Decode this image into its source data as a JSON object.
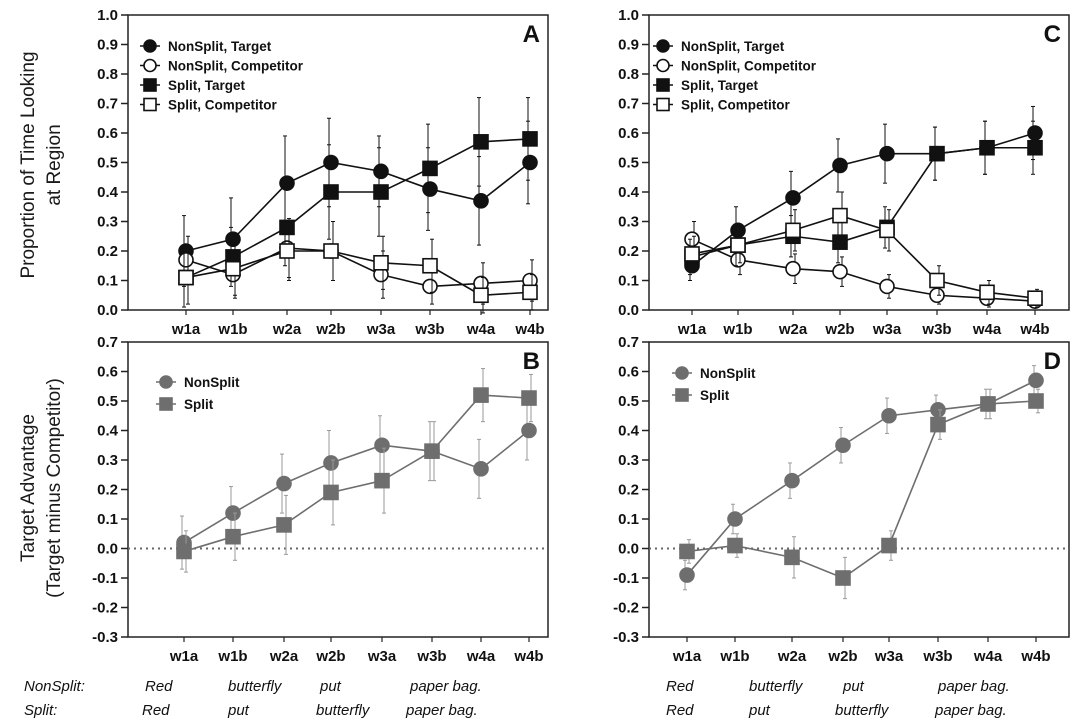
{
  "figure": {
    "ylabel_top": [
      "Proportion of Time Looking",
      "at Region"
    ],
    "ylabel_bottom": [
      "Target Advantage",
      "(Target minus Competitor)"
    ]
  },
  "colors": {
    "black": "#111111",
    "gray": "#6e6e6e",
    "errorbar_gray": "#9a9a9a"
  },
  "chart_data": [
    {
      "panel": "A",
      "type": "line",
      "categories": [
        "w1a",
        "w1b",
        "w2a",
        "w2b",
        "w3a",
        "w3b",
        "w4a",
        "w4b"
      ],
      "ylim": [
        0,
        1.0
      ],
      "yticks": [
        "0.0",
        "0.1",
        "0.2",
        "0.3",
        "0.4",
        "0.5",
        "0.6",
        "0.7",
        "0.8",
        "0.9",
        "1.0"
      ],
      "legend_position": "top-left",
      "series": [
        {
          "name": "NonSplit, Target",
          "marker": "circle",
          "fill": "filled",
          "values": [
            0.2,
            0.24,
            0.43,
            0.5,
            0.47,
            0.41,
            0.37,
            0.5
          ],
          "err": [
            0.12,
            0.14,
            0.16,
            0.15,
            0.12,
            0.14,
            0.15,
            0.14
          ]
        },
        {
          "name": "NonSplit, Competitor",
          "marker": "circle",
          "fill": "open",
          "values": [
            0.17,
            0.12,
            0.21,
            0.2,
            0.12,
            0.08,
            0.09,
            0.1
          ],
          "err": [
            0.08,
            0.08,
            0.1,
            0.1,
            0.08,
            0.06,
            0.07,
            0.07
          ]
        },
        {
          "name": "Split, Target",
          "marker": "square",
          "fill": "filled",
          "values": [
            0.11,
            0.18,
            0.28,
            0.4,
            0.4,
            0.48,
            0.57,
            0.58
          ],
          "err": [
            0.1,
            0.1,
            0.13,
            0.16,
            0.15,
            0.15,
            0.15,
            0.14
          ]
        },
        {
          "name": "Split, Competitor",
          "marker": "square",
          "fill": "open",
          "values": [
            0.11,
            0.14,
            0.2,
            0.2,
            0.16,
            0.15,
            0.05,
            0.06
          ],
          "err": [
            0.09,
            0.09,
            0.1,
            0.1,
            0.09,
            0.09,
            0.06,
            0.06
          ]
        }
      ]
    },
    {
      "panel": "C",
      "type": "line",
      "categories": [
        "w1a",
        "w1b",
        "w2a",
        "w2b",
        "w3a",
        "w3b",
        "w4a",
        "w4b"
      ],
      "ylim": [
        0,
        1.0
      ],
      "yticks": [
        "0.0",
        "0.1",
        "0.2",
        "0.3",
        "0.4",
        "0.5",
        "0.6",
        "0.7",
        "0.8",
        "0.9",
        "1.0"
      ],
      "legend_position": "top-left",
      "series": [
        {
          "name": "NonSplit, Target",
          "marker": "circle",
          "fill": "filled",
          "values": [
            0.15,
            0.27,
            0.38,
            0.49,
            0.53,
            0.53,
            0.55,
            0.6
          ],
          "err": [
            0.05,
            0.08,
            0.09,
            0.09,
            0.1,
            0.09,
            0.09,
            0.09
          ]
        },
        {
          "name": "NonSplit, Competitor",
          "marker": "circle",
          "fill": "open",
          "values": [
            0.24,
            0.17,
            0.14,
            0.13,
            0.08,
            0.05,
            0.04,
            0.03
          ],
          "err": [
            0.06,
            0.05,
            0.05,
            0.05,
            0.04,
            0.03,
            0.03,
            0.02
          ]
        },
        {
          "name": "Split, Target",
          "marker": "square",
          "fill": "filled",
          "values": [
            0.18,
            0.22,
            0.25,
            0.23,
            0.28,
            0.53,
            0.55,
            0.55
          ],
          "err": [
            0.06,
            0.07,
            0.07,
            0.07,
            0.07,
            0.09,
            0.09,
            0.09
          ]
        },
        {
          "name": "Split, Competitor",
          "marker": "square",
          "fill": "open",
          "values": [
            0.19,
            0.22,
            0.27,
            0.32,
            0.27,
            0.1,
            0.06,
            0.04
          ],
          "err": [
            0.06,
            0.06,
            0.07,
            0.08,
            0.07,
            0.05,
            0.04,
            0.03
          ]
        }
      ]
    },
    {
      "panel": "B",
      "type": "line",
      "categories": [
        "w1a",
        "w1b",
        "w2a",
        "w2b",
        "w3a",
        "w3b",
        "w4a",
        "w4b"
      ],
      "ylim": [
        -0.3,
        0.7
      ],
      "yticks": [
        "-0.3",
        "-0.2",
        "-0.1",
        "0.0",
        "0.1",
        "0.2",
        "0.3",
        "0.4",
        "0.5",
        "0.6",
        "0.7"
      ],
      "reference_line": 0,
      "legend_position": "top-left",
      "series": [
        {
          "name": "NonSplit",
          "marker": "circle",
          "values": [
            0.02,
            0.12,
            0.22,
            0.29,
            0.35,
            0.33,
            0.27,
            0.4
          ],
          "err": [
            0.09,
            0.09,
            0.1,
            0.11,
            0.1,
            0.1,
            0.1,
            0.1
          ]
        },
        {
          "name": "Split",
          "marker": "square",
          "values": [
            -0.01,
            0.04,
            0.08,
            0.19,
            0.23,
            0.33,
            0.52,
            0.51
          ],
          "err": [
            0.07,
            0.08,
            0.1,
            0.11,
            0.11,
            0.1,
            0.09,
            0.08
          ]
        }
      ]
    },
    {
      "panel": "D",
      "type": "line",
      "categories": [
        "w1a",
        "w1b",
        "w2a",
        "w2b",
        "w3a",
        "w3b",
        "w4a",
        "w4b"
      ],
      "ylim": [
        -0.3,
        0.7
      ],
      "yticks": [
        "-0.3",
        "-0.2",
        "-0.1",
        "0.0",
        "0.1",
        "0.2",
        "0.3",
        "0.4",
        "0.5",
        "0.6",
        "0.7"
      ],
      "reference_line": 0,
      "legend_position": "top-left",
      "series": [
        {
          "name": "NonSplit",
          "marker": "circle",
          "values": [
            -0.09,
            0.1,
            0.23,
            0.35,
            0.45,
            0.47,
            0.49,
            0.57
          ],
          "err": [
            0.05,
            0.05,
            0.06,
            0.06,
            0.06,
            0.05,
            0.05,
            0.05
          ]
        },
        {
          "name": "Split",
          "marker": "square",
          "values": [
            -0.01,
            0.01,
            -0.03,
            -0.1,
            0.01,
            0.42,
            0.49,
            0.5
          ],
          "err": [
            0.04,
            0.04,
            0.07,
            0.07,
            0.05,
            0.05,
            0.05,
            0.04
          ]
        }
      ]
    }
  ],
  "sentences": {
    "left": {
      "nonsplit_label": "NonSplit:",
      "split_label": "Split:",
      "nonsplit_words": [
        "Red",
        "butterfly",
        "put",
        "paper bag."
      ],
      "split_words": [
        "Red",
        "put",
        "butterfly",
        "paper bag."
      ]
    },
    "right": {
      "nonsplit_words": [
        "Red",
        "butterfly",
        "put",
        "paper bag."
      ],
      "split_words": [
        "Red",
        "put",
        "butterfly",
        "paper bag."
      ]
    }
  }
}
